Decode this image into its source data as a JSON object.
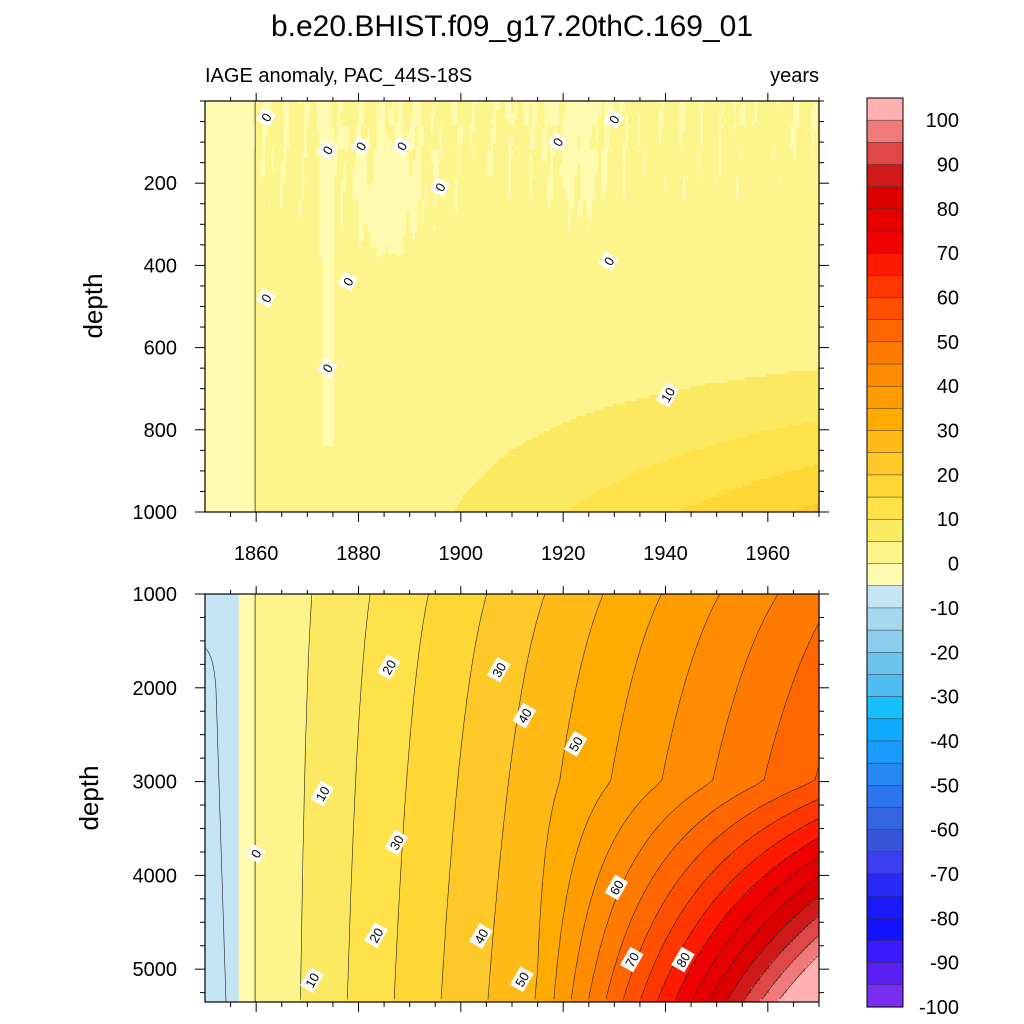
{
  "title": "b.e20.BHIST.f09_g17.20thC.169_01",
  "subtitle_left": "IAGE anomaly, PAC_44S-18S",
  "subtitle_right": "years",
  "chart_data": {
    "type": "heatmap",
    "x": {
      "ticks": [
        1860,
        1880,
        1900,
        1920,
        1940,
        1960
      ],
      "tick_labels": [
        "1860",
        "1880",
        "1900",
        "1920",
        "1940",
        "1960"
      ],
      "range": [
        1850,
        1970
      ]
    },
    "panels": [
      {
        "name": "upper",
        "ylabel": "depth",
        "yrange": [
          0,
          1000
        ],
        "yticks": [
          200,
          400,
          600,
          800,
          1000
        ],
        "ytick_labels": [
          "200",
          "400",
          "600",
          "800",
          "1000"
        ],
        "contour_labels": [
          {
            "text": "0",
            "year": 1862,
            "depth": 40
          },
          {
            "text": "0",
            "year": 1862,
            "depth": 480
          },
          {
            "text": "0",
            "year": 1874,
            "depth": 120
          },
          {
            "text": "0",
            "year": 1874,
            "depth": 650
          },
          {
            "text": "0",
            "year": 1878,
            "depth": 440
          },
          {
            "text": "0",
            "year": 1880.5,
            "depth": 110
          },
          {
            "text": "0",
            "year": 1888.5,
            "depth": 110
          },
          {
            "text": "0",
            "year": 1896,
            "depth": 210
          },
          {
            "text": "0",
            "year": 1919,
            "depth": 100
          },
          {
            "text": "0",
            "year": 1930,
            "depth": 45
          },
          {
            "text": "0",
            "year": 1929,
            "depth": 390
          },
          {
            "text": "10",
            "year": 1940.5,
            "depth": 715
          }
        ]
      },
      {
        "name": "lower",
        "ylabel": "depth",
        "yrange": [
          1000,
          5350
        ],
        "yticks": [
          1000,
          2000,
          3000,
          4000,
          5000
        ],
        "ytick_labels": [
          "1000",
          "2000",
          "3000",
          "4000",
          "5000"
        ],
        "contour_labels": [
          {
            "text": "0",
            "year": 1860,
            "depth": 3770
          },
          {
            "text": "10",
            "year": 1873,
            "depth": 3130
          },
          {
            "text": "10",
            "year": 1871,
            "depth": 5120
          },
          {
            "text": "20",
            "year": 1886,
            "depth": 1780
          },
          {
            "text": "20",
            "year": 1883.5,
            "depth": 4640
          },
          {
            "text": "30",
            "year": 1907.5,
            "depth": 1810
          },
          {
            "text": "30",
            "year": 1887.5,
            "depth": 3650
          },
          {
            "text": "40",
            "year": 1912.5,
            "depth": 2300
          },
          {
            "text": "40",
            "year": 1904,
            "depth": 4650
          },
          {
            "text": "50",
            "year": 1922.5,
            "depth": 2600
          },
          {
            "text": "50",
            "year": 1912,
            "depth": 5110
          },
          {
            "text": "60",
            "year": 1930.5,
            "depth": 4130
          },
          {
            "text": "70",
            "year": 1933.5,
            "depth": 4900
          },
          {
            "text": "80",
            "year": 1943.5,
            "depth": 4900
          }
        ]
      }
    ],
    "colorbar": {
      "labels": [
        "100",
        "90",
        "80",
        "70",
        "60",
        "50",
        "40",
        "30",
        "20",
        "10",
        "0",
        "-10",
        "-20",
        "-30",
        "-40",
        "-50",
        "-60",
        "-70",
        "-80",
        "-90",
        "-100"
      ],
      "levels_high_to_low": [
        105,
        100,
        95,
        90,
        85,
        80,
        75,
        70,
        65,
        60,
        55,
        50,
        45,
        40,
        35,
        30,
        25,
        20,
        15,
        10,
        5,
        0,
        -5,
        -10,
        -15,
        -20,
        -25,
        -30,
        -35,
        -40,
        -45,
        -50,
        -55,
        -60,
        -65,
        -70,
        -75,
        -80,
        -85,
        -90,
        -95,
        -100,
        -105
      ],
      "colors_high_to_low": [
        "#ffb0b0",
        "#f07a7a",
        "#e04848",
        "#d01a1a",
        "#dc0000",
        "#e60000",
        "#f00000",
        "#ff1a00",
        "#ff3600",
        "#ff4f00",
        "#ff6500",
        "#ff7a00",
        "#ff8c00",
        "#ff9c00",
        "#ffab00",
        "#ffba18",
        "#ffc829",
        "#ffd735",
        "#ffe24a",
        "#fbe962",
        "#fdf48c",
        "#fffcb2",
        "#c5e4f4",
        "#a4d8ef",
        "#8ccdeb",
        "#6cc3ee",
        "#4fbcf2",
        "#16c0ff",
        "#10aaff",
        "#1a9bff",
        "#2688f2",
        "#2c74f0",
        "#3566e2",
        "#3a55dc",
        "#3c3ff0",
        "#2929f8",
        "#1919fa",
        "#1212ff",
        "#3b1aff",
        "#5a20f3",
        "#7a2ef0"
      ]
    }
  }
}
